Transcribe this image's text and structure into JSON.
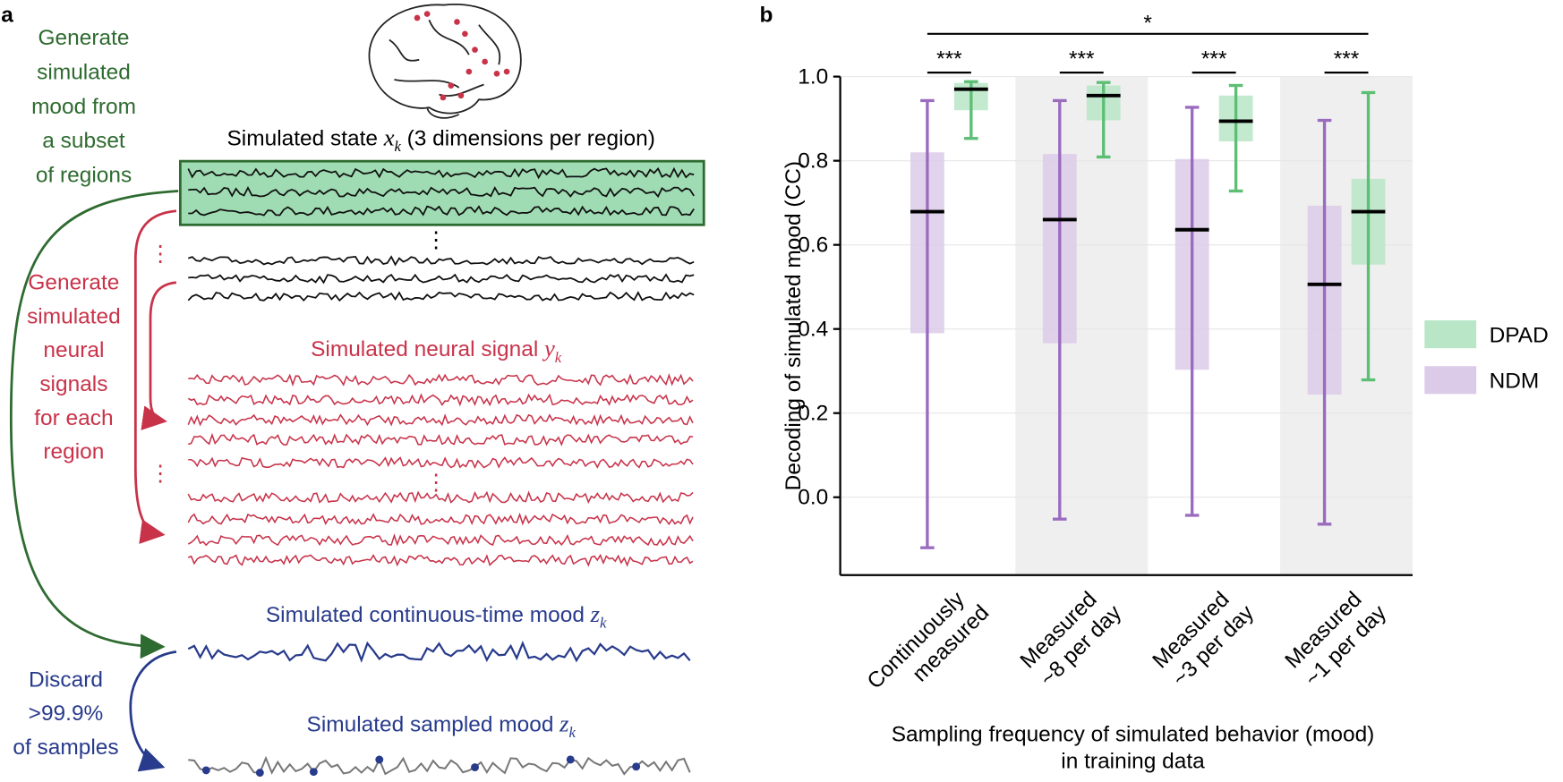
{
  "panel_a": {
    "label": "a",
    "mood_gen": [
      "Generate",
      "simulated",
      "mood from",
      "a subset",
      "of regions"
    ],
    "neural_gen": [
      "Generate",
      "simulated",
      "neural",
      "signals",
      "for each",
      "region"
    ],
    "discard": [
      "Discard",
      ">99.9%",
      "of samples"
    ],
    "state_title": {
      "text": "Simulated state",
      "var": "x",
      "sub": "k",
      "rest": "(3 dimensions per region)"
    },
    "neural_title": {
      "text": "Simulated neural signal",
      "var": "y",
      "sub": "k"
    },
    "mood_title": {
      "text": "Simulated continuous-time mood",
      "var": "z",
      "sub": "k"
    },
    "sampled_title": {
      "text": "Simulated sampled mood",
      "var": "z",
      "sub": "k"
    }
  },
  "chart_data": {
    "type": "box",
    "panel_label": "b",
    "ylabel": "Decoding of simulated mood (CC)",
    "xlabel": [
      "Sampling frequency of simulated behavior (mood)",
      "in training data"
    ],
    "categories": [
      "Continuously measured",
      "Measured ~8 per day",
      "Measured ~3 per day",
      "Measured ~1 per day"
    ],
    "ylim": [
      -0.185,
      1.0
    ],
    "yticks": [
      {
        "value": 0,
        "label": "0.0"
      },
      0.2,
      0.4,
      0.6,
      0.8,
      {
        "value": 1,
        "label": "1.0"
      }
    ],
    "grid": true,
    "shaded_categories": [
      1,
      3
    ],
    "legend_position": "right",
    "series": [
      {
        "name": "DPAD",
        "color": "#b9e6c7",
        "whisker_color": "#5cbf74",
        "median": [
          0.97,
          0.955,
          0.894,
          0.679
        ],
        "q1": [
          0.92,
          0.896,
          0.846,
          0.553
        ],
        "q3": [
          0.985,
          0.979,
          0.955,
          0.757
        ],
        "low": [
          0.853,
          0.809,
          0.728,
          0.279
        ],
        "high": [
          0.988,
          0.986,
          0.979,
          0.962
        ]
      },
      {
        "name": "NDM",
        "color": "#dccbe8",
        "whisker_color": "#9b6bbf",
        "median": [
          0.679,
          0.66,
          0.636,
          0.506
        ],
        "q1": [
          0.39,
          0.366,
          0.303,
          0.244
        ],
        "q3": [
          0.82,
          0.816,
          0.804,
          0.693
        ],
        "low": [
          -0.12,
          -0.052,
          -0.043,
          -0.064
        ],
        "high": [
          0.943,
          0.943,
          0.927,
          0.896
        ]
      }
    ],
    "significance": [
      "***",
      "***",
      "***",
      "***"
    ],
    "overall_significance": "*"
  }
}
